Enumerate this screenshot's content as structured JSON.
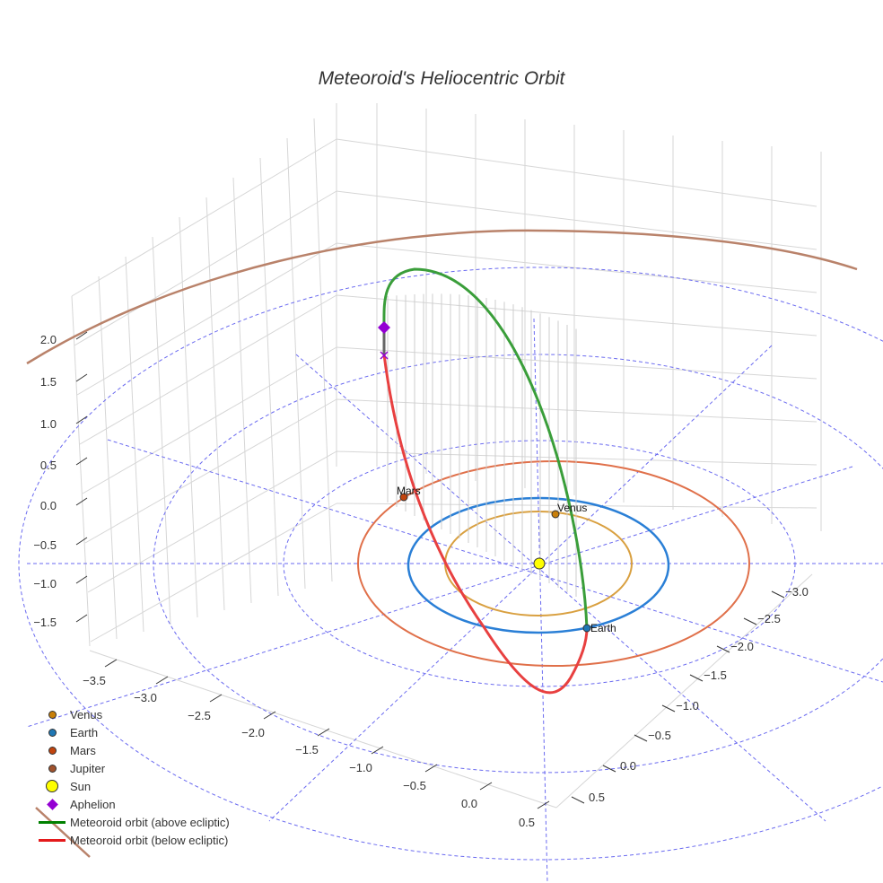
{
  "chart_data": {
    "type": "scatter3d",
    "title": "Meteoroid's Heliocentric Orbit",
    "axes": {
      "x": {
        "ticks": [
          "−3.5",
          "−3.0",
          "−2.5",
          "−2.0",
          "−1.5",
          "−1.0",
          "−0.5",
          "0.0",
          "0.5"
        ]
      },
      "y": {
        "ticks": [
          "−3.0",
          "−2.5",
          "−2.0",
          "−1.5",
          "−1.0",
          "−0.5",
          "0.0",
          "0.5"
        ]
      },
      "z": {
        "ticks": [
          "2.0",
          "1.5",
          "1.0",
          "0.5",
          "0.0",
          "−0.5",
          "−1.0",
          "−1.5"
        ]
      }
    },
    "point_labels": {
      "mars": "Mars",
      "venus": "Venus",
      "earth": "Earth"
    },
    "legend": [
      {
        "name": "Venus",
        "kind": "dot",
        "color": "#c87f0a"
      },
      {
        "name": "Earth",
        "kind": "dot",
        "color": "#1f77b4"
      },
      {
        "name": "Mars",
        "kind": "dot",
        "color": "#c1440e"
      },
      {
        "name": "Jupiter",
        "kind": "dot",
        "color": "#a0522d"
      },
      {
        "name": "Sun",
        "kind": "sun",
        "color": "#ffff00"
      },
      {
        "name": "Aphelion",
        "kind": "diamond",
        "color": "#9400d3"
      },
      {
        "name": "Meteoroid orbit (above ecliptic)",
        "kind": "line",
        "color": "#008000"
      },
      {
        "name": "Meteoroid orbit (below ecliptic)",
        "kind": "line",
        "color": "#e41a1c"
      }
    ],
    "legend_position": "bottom-left"
  }
}
